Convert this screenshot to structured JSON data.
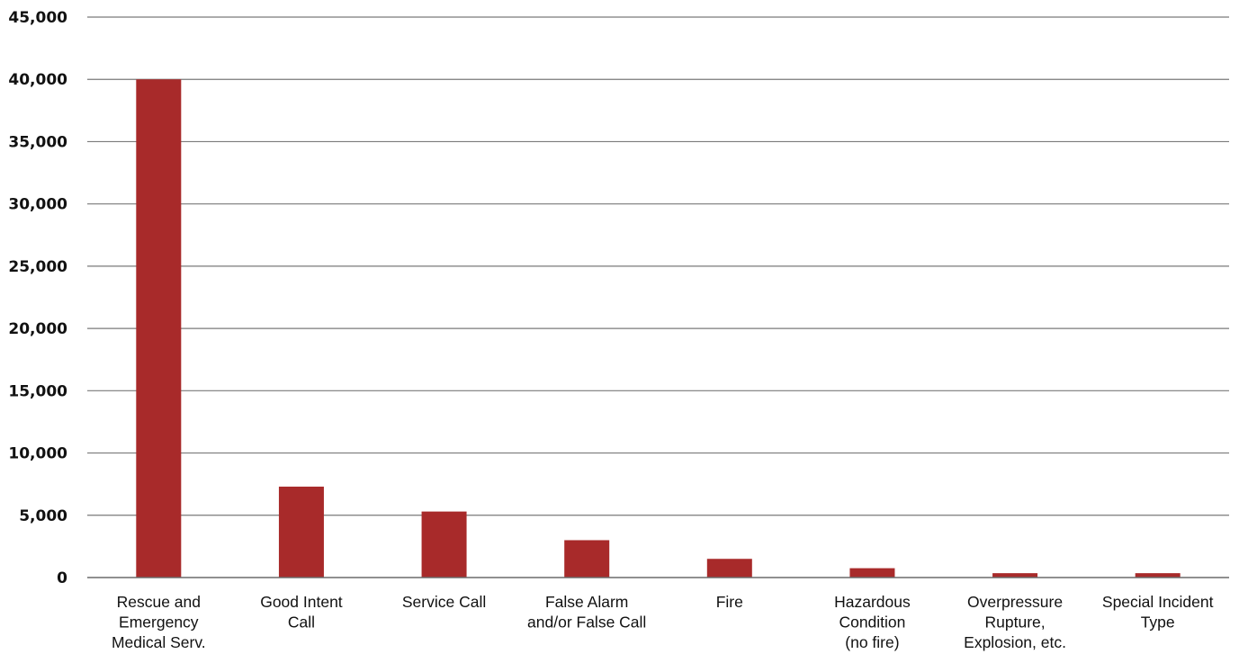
{
  "chart_data": {
    "type": "bar",
    "title": "",
    "xlabel": "",
    "ylabel": "",
    "categories": [
      [
        "Rescue and",
        "Emergency",
        "Medical Serv."
      ],
      [
        "Good Intent",
        "Call"
      ],
      [
        "Service Call"
      ],
      [
        "False Alarm",
        "and/or False Call"
      ],
      [
        "Fire"
      ],
      [
        "Hazardous",
        "Condition",
        "(no fire)"
      ],
      [
        "Overpressure",
        "Rupture,",
        "Explosion, etc."
      ],
      [
        "Special Incident",
        "Type"
      ]
    ],
    "values": [
      40000,
      7300,
      5300,
      3000,
      1500,
      750,
      350,
      350
    ],
    "ylim": [
      0,
      45000
    ],
    "yticks": [
      0,
      5000,
      10000,
      15000,
      20000,
      25000,
      30000,
      35000,
      40000,
      45000
    ],
    "ytick_labels": [
      "0",
      "5,000",
      "10,000",
      "15,000",
      "20,000",
      "25,000",
      "30,000",
      "35,000",
      "40,000",
      "45,000"
    ],
    "bar_color": "#a82a2a",
    "grid": true,
    "legend": "none"
  }
}
